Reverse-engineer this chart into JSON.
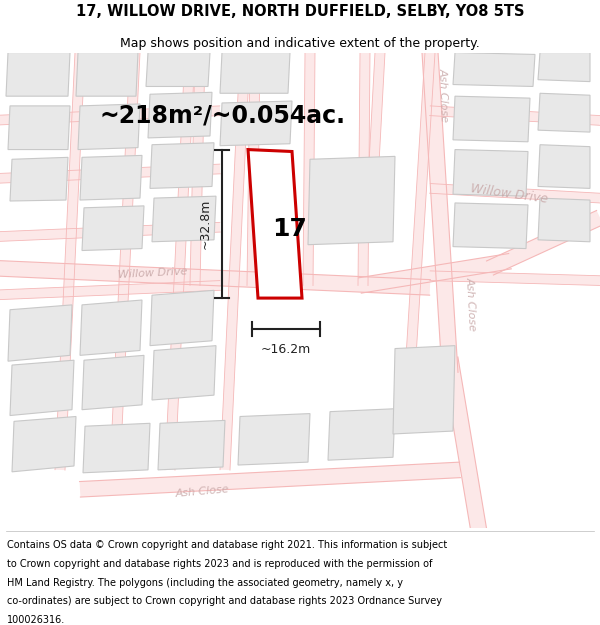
{
  "title_line1": "17, WILLOW DRIVE, NORTH DUFFIELD, SELBY, YO8 5TS",
  "title_line2": "Map shows position and indicative extent of the property.",
  "area_text": "~218m²/~0.054ac.",
  "dim_width": "~16.2m",
  "dim_height": "~32.8m",
  "plot_number": "17",
  "footer_lines": [
    "Contains OS data © Crown copyright and database right 2021. This information is subject",
    "to Crown copyright and database rights 2023 and is reproduced with the permission of",
    "HM Land Registry. The polygons (including the associated geometry, namely x, y",
    "co-ordinates) are subject to Crown copyright and database rights 2023 Ordnance Survey",
    "100026316."
  ],
  "bg_color": "#ffffff",
  "road_line_color": "#f5b8b8",
  "building_fc": "#e8e8e8",
  "building_ec": "#c8c8c8",
  "red_plot_color": "#cc0000",
  "street_label_color": "#c8a8a8",
  "dim_line_color": "#222222",
  "title_fontsize": 10.5,
  "subtitle_fontsize": 9,
  "footer_fontsize": 7.0,
  "area_fontsize": 17,
  "plot_num_fontsize": 18,
  "dim_fontsize": 9
}
